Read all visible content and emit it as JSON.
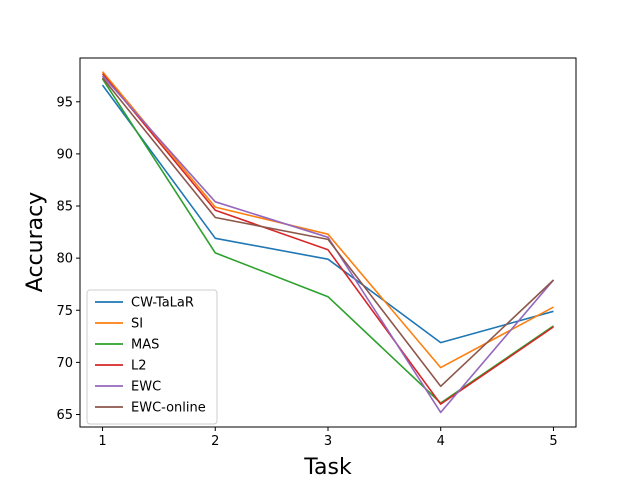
{
  "chart_data": {
    "type": "line",
    "title": "",
    "xlabel": "Task",
    "ylabel": "Accuracy",
    "x": [
      1,
      2,
      3,
      4,
      5
    ],
    "xlim": [
      0.8,
      5.2
    ],
    "ylim": [
      63.8,
      99.2
    ],
    "xticks": [
      1,
      2,
      3,
      4,
      5
    ],
    "yticks": [
      65,
      70,
      75,
      80,
      85,
      90,
      95
    ],
    "grid": false,
    "legend_position": "lower-left",
    "series": [
      {
        "name": "CW-TaLaR",
        "color": "#1f77b4",
        "values": [
          96.6,
          81.9,
          79.9,
          71.9,
          74.9
        ]
      },
      {
        "name": "SI",
        "color": "#ff7f0e",
        "values": [
          97.9,
          84.9,
          82.3,
          69.5,
          75.3
        ]
      },
      {
        "name": "MAS",
        "color": "#2ca02c",
        "values": [
          97.2,
          80.5,
          76.3,
          66.1,
          73.5
        ]
      },
      {
        "name": "L2",
        "color": "#d62728",
        "values": [
          97.7,
          84.6,
          80.8,
          66.0,
          73.4
        ]
      },
      {
        "name": "EWC",
        "color": "#9467bd",
        "values": [
          97.5,
          85.4,
          82.0,
          65.2,
          77.9
        ]
      },
      {
        "name": "EWC-online",
        "color": "#8c564b",
        "values": [
          97.3,
          83.9,
          81.8,
          67.7,
          77.9
        ]
      }
    ]
  }
}
